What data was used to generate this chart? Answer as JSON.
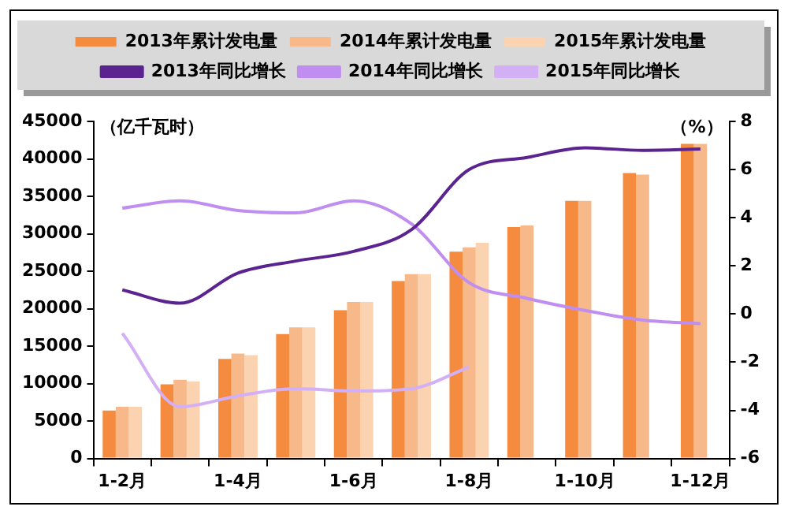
{
  "chart_data": {
    "type": "bar",
    "categories": [
      "1-2月",
      null,
      "1-4月",
      null,
      "1-6月",
      null,
      "1-8月",
      null,
      "1-10月",
      null,
      "1-12月"
    ],
    "ylabel": "（亿千瓦时）",
    "y2label": "（%）",
    "ylim": [
      0,
      45000
    ],
    "yticks": [
      0,
      5000,
      10000,
      15000,
      20000,
      25000,
      30000,
      35000,
      40000,
      45000
    ],
    "y2lim": [
      -6,
      8
    ],
    "y2ticks": [
      -6,
      -4,
      -2,
      0,
      2,
      4,
      6,
      8
    ],
    "grid": false,
    "legend": "top",
    "series": [
      {
        "name": "2013年累计发电量",
        "color": "#f58b3f",
        "values": [
          6400,
          9900,
          13300,
          16600,
          19800,
          23700,
          27600,
          30900,
          34400,
          38100,
          42000
        ]
      },
      {
        "name": "2014年累计发电量",
        "color": "#f7b98a",
        "values": [
          6900,
          10500,
          14000,
          17500,
          20900,
          24600,
          28200,
          31100,
          34400,
          37900,
          42000
        ]
      },
      {
        "name": "2015年累计发电量",
        "color": "#fbd3b0",
        "values": [
          6900,
          10300,
          13800,
          17500,
          20900,
          24600,
          28800,
          null,
          null,
          null,
          null
        ]
      },
      {
        "name": "2013年同比增长",
        "type": "line",
        "axis": "y2",
        "color": "#5b2390",
        "values": [
          1.0,
          0.45,
          1.7,
          2.2,
          2.6,
          3.5,
          6.0,
          6.5,
          6.9,
          6.8,
          6.85
        ]
      },
      {
        "name": "2014年同比增长",
        "type": "line",
        "axis": "y2",
        "color": "#c08ef0",
        "values": [
          4.4,
          4.7,
          4.3,
          4.2,
          4.7,
          3.75,
          1.3,
          0.65,
          0.15,
          -0.25,
          -0.4
        ]
      },
      {
        "name": "2015年同比增长",
        "type": "line",
        "axis": "y2",
        "color": "#d3b0f5",
        "values": [
          -0.8,
          -3.85,
          -3.4,
          -3.1,
          -3.2,
          -3.1,
          -2.2,
          null,
          null,
          null,
          null
        ]
      }
    ]
  }
}
